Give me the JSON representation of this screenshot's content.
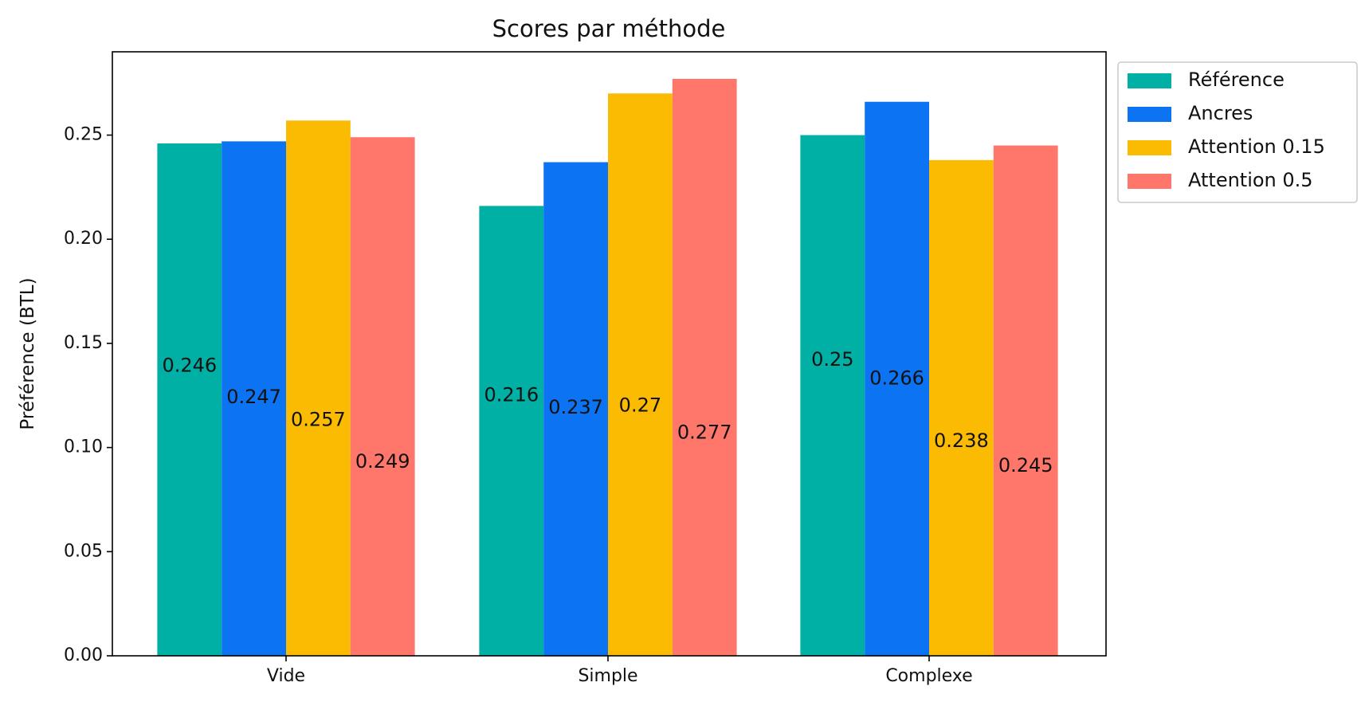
{
  "chart_data": {
    "type": "bar",
    "title": "Scores par méthode",
    "xlabel": "",
    "ylabel": "Préférence (BTL)",
    "categories": [
      "Vide",
      "Simple",
      "Complexe"
    ],
    "series": [
      {
        "name": "Référence",
        "color": "#00B0A4",
        "values": [
          0.246,
          0.216,
          0.25
        ]
      },
      {
        "name": "Ancres",
        "color": "#0C73F2",
        "values": [
          0.247,
          0.237,
          0.266
        ]
      },
      {
        "name": "Attention 0.15",
        "color": "#FBBB02",
        "values": [
          0.257,
          0.27,
          0.238
        ]
      },
      {
        "name": "Attention 0.5",
        "color": "#FF776B",
        "values": [
          0.249,
          0.277,
          0.245
        ]
      }
    ],
    "data_labels": [
      [
        "0.246",
        "0.216",
        "0.25"
      ],
      [
        "0.247",
        "0.237",
        "0.266"
      ],
      [
        "0.257",
        "0.27",
        "0.238"
      ],
      [
        "0.249",
        "0.277",
        "0.245"
      ]
    ],
    "label_values": [
      [
        0.139,
        0.125,
        0.142
      ],
      [
        0.124,
        0.119,
        0.133
      ],
      [
        0.113,
        0.12,
        0.103
      ],
      [
        0.093,
        0.107,
        0.091
      ]
    ],
    "ylim": [
      0,
      0.29
    ],
    "yticks": [
      "0.00",
      "0.05",
      "0.10",
      "0.15",
      "0.20",
      "0.25"
    ],
    "legend_position": "outside-top-right",
    "grid": false
  }
}
